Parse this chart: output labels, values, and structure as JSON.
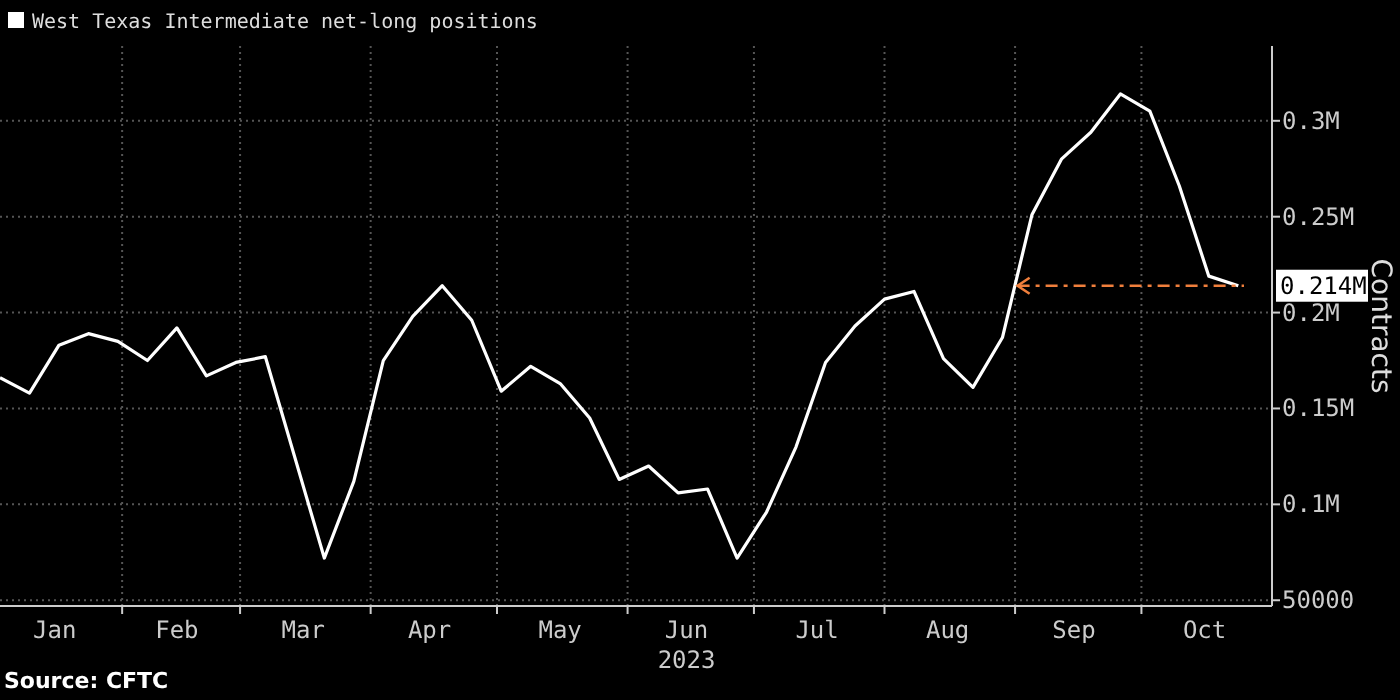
{
  "chart_data": {
    "type": "line",
    "ylabel": "Contracts",
    "xlabel": "2023",
    "legend": "top left",
    "grid": true,
    "line_style": "solid",
    "marker": "none",
    "annotations": [
      "Source: CFTC"
    ],
    "xlim": [
      "2023-01-03",
      "2023-11-01"
    ],
    "xticks": [
      {
        "value": "2023-01-16",
        "label": "Jan"
      },
      {
        "value": "2023-02-01",
        "label": null
      },
      {
        "value": "2023-02-14",
        "label": "Feb"
      },
      {
        "value": "2023-03-01",
        "label": null
      },
      {
        "value": "2023-03-16",
        "label": "Mar"
      },
      {
        "value": "2023-04-01",
        "label": null
      },
      {
        "value": "2023-04-15",
        "label": "Apr"
      },
      {
        "value": "2023-05-01",
        "label": null
      },
      {
        "value": "2023-05-16",
        "label": "May"
      },
      {
        "value": "2023-06-01",
        "label": null
      },
      {
        "value": "2023-06-15",
        "label": "Jun"
      },
      {
        "value": "2023-07-01",
        "label": null
      },
      {
        "value": "2023-07-16",
        "label": "Jul"
      },
      {
        "value": "2023-08-01",
        "label": null
      },
      {
        "value": "2023-08-16",
        "label": "Aug"
      },
      {
        "value": "2023-09-01",
        "label": null
      },
      {
        "value": "2023-09-15",
        "label": "Sep"
      },
      {
        "value": "2023-10-01",
        "label": null
      },
      {
        "value": "2023-10-16",
        "label": "Oct"
      }
    ],
    "ylim": [
      47000,
      339000
    ],
    "yticks": [
      50000,
      {
        "value": 100000,
        "label": "0.1M"
      },
      {
        "value": 150000,
        "label": "0.15M"
      },
      {
        "value": 200000,
        "label": "0.2M"
      },
      {
        "value": 250000,
        "label": "0.25M"
      },
      {
        "value": 300000,
        "label": "0.3M"
      }
    ],
    "ref_lines": [
      {
        "axis": "y",
        "value": 214000,
        "label": "0.214M",
        "color": "#f07f3c",
        "line_style": "dashed"
      }
    ],
    "series": [
      {
        "name": "West Texas Intermediate net-long positions",
        "color": "#ffffff",
        "x": [
          "2023-01-03",
          "2023-01-10",
          "2023-01-17",
          "2023-01-24",
          "2023-01-31",
          "2023-02-07",
          "2023-02-14",
          "2023-02-21",
          "2023-02-28",
          "2023-03-07",
          "2023-03-21",
          "2023-03-28",
          "2023-04-04",
          "2023-04-11",
          "2023-04-18",
          "2023-04-25",
          "2023-05-02",
          "2023-05-09",
          "2023-05-16",
          "2023-05-23",
          "2023-05-30",
          "2023-06-06",
          "2023-06-13",
          "2023-06-20",
          "2023-06-27",
          "2023-07-04",
          "2023-07-11",
          "2023-07-18",
          "2023-07-25",
          "2023-08-01",
          "2023-08-08",
          "2023-08-15",
          "2023-08-22",
          "2023-08-29",
          "2023-09-05",
          "2023-09-12",
          "2023-09-19",
          "2023-09-26",
          "2023-10-03",
          "2023-10-10",
          "2023-10-17",
          "2023-10-24"
        ],
        "values": [
          166000,
          158000,
          183000,
          189000,
          185000,
          175000,
          192000,
          167000,
          174000,
          177000,
          72000,
          112000,
          175000,
          198000,
          214000,
          196000,
          159000,
          172000,
          163000,
          145000,
          113000,
          120000,
          106000,
          108000,
          72000,
          96000,
          130000,
          174000,
          193000,
          207000,
          211000,
          176000,
          161000,
          187000,
          251000,
          280000,
          294000,
          314000,
          305000,
          266000,
          219000,
          214000
        ]
      }
    ]
  }
}
